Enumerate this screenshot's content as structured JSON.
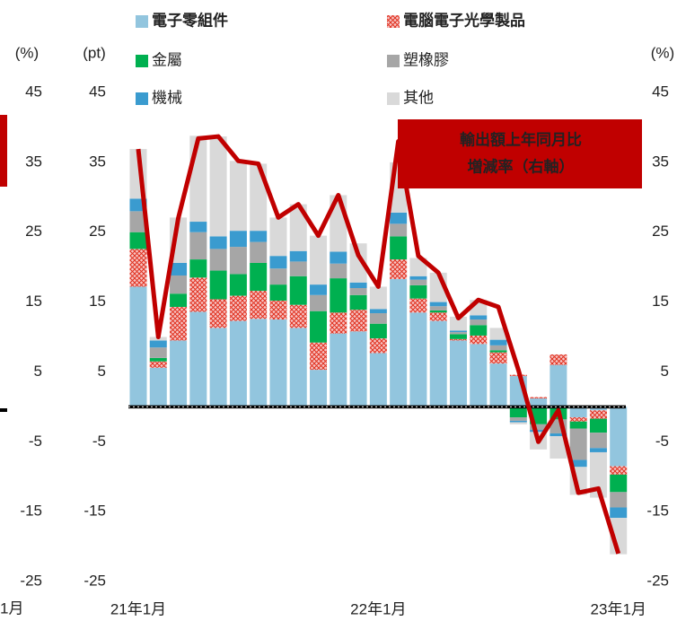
{
  "chart_data": [
    {
      "type": "bar",
      "y_label": "(%)",
      "ylim": [
        -25,
        45
      ],
      "yticks": [
        45,
        35,
        25,
        15,
        5,
        -5,
        -15,
        -25
      ],
      "negative_tick_color": "#e00000",
      "categories": [
        "1月"
      ]
    },
    {
      "type": "bar",
      "stacked": true,
      "y_label": "(pt)",
      "y2_label": "(%)",
      "ylim": [
        -25,
        45
      ],
      "yticks": [
        45,
        35,
        25,
        15,
        5,
        -5,
        -15,
        -25
      ],
      "y2lim": [
        -25,
        45
      ],
      "y2ticks": [
        45,
        35,
        25,
        15,
        5,
        -5,
        -15,
        -25
      ],
      "negative_tick_color": "#e00000",
      "annotation": [
        "輸出額上年同月比",
        "増減率（右軸）"
      ],
      "categories": [
        "21年1月",
        null,
        null,
        null,
        null,
        null,
        null,
        null,
        null,
        null,
        null,
        null,
        "22年1月",
        null,
        null,
        null,
        null,
        null,
        null,
        null,
        null,
        null,
        null,
        null,
        "23年1月"
      ],
      "series": [
        {
          "name": "電子零組件",
          "color": "#92c5de",
          "values": [
            17.2,
            5.6,
            9.5,
            13.6,
            11.3,
            12.3,
            12.6,
            12.5,
            11.3,
            5.3,
            10.5,
            10.8,
            7.7,
            18.3,
            13.5,
            12.3,
            9.5,
            9.0,
            6.2,
            4.4,
            1.2,
            6.0,
            -1.5,
            -0.5,
            -8.5
          ]
        },
        {
          "name": "電腦電子光學製品",
          "color": "#e0301e",
          "hatch": true,
          "values": [
            5.4,
            0.9,
            4.8,
            4.9,
            4.1,
            3.6,
            4.0,
            2.7,
            3.3,
            3.9,
            3.0,
            3.1,
            2.1,
            2.8,
            2.0,
            1.2,
            0.2,
            1.2,
            1.6,
            0.2,
            0.2,
            1.5,
            -0.6,
            -1.2,
            -1.2
          ]
        },
        {
          "name": "金屬",
          "color": "#00b050",
          "values": [
            2.4,
            0.5,
            1.9,
            2.6,
            4.1,
            3.1,
            4.0,
            2.3,
            4.1,
            4.5,
            4.9,
            2.1,
            2.1,
            3.3,
            1.9,
            0.3,
            0.7,
            1.5,
            0.3,
            -1.5,
            -2.5,
            -1.8,
            -1.0,
            -2.0,
            -2.5
          ]
        },
        {
          "name": "塑橡膠",
          "color": "#a6a6a6",
          "values": [
            3.0,
            1.5,
            2.6,
            3.9,
            3.1,
            3.9,
            3.0,
            2.3,
            2.1,
            2.3,
            2.1,
            1.0,
            1.5,
            1.8,
            0.8,
            0.6,
            0.3,
            0.8,
            0.7,
            -0.5,
            -0.8,
            -2.0,
            -4.5,
            -2.2,
            -2.2
          ]
        },
        {
          "name": "機械",
          "color": "#3a9bcf",
          "values": [
            1.8,
            1.0,
            1.8,
            1.5,
            1.8,
            2.3,
            1.6,
            1.8,
            1.5,
            1.5,
            1.7,
            0.8,
            0.6,
            1.6,
            0.5,
            0.6,
            0.2,
            0.6,
            0.8,
            -0.2,
            -0.3,
            -0.4,
            -1.0,
            -0.6,
            -1.5
          ]
        },
        {
          "name": "其他",
          "color": "#d9d9d9",
          "values": [
            7.1,
            0.5,
            6.5,
            12.3,
            14.3,
            10.0,
            9.6,
            5.5,
            6.7,
            7.0,
            8.1,
            5.6,
            3.2,
            7.2,
            2.6,
            4.2,
            2.0,
            2.2,
            1.7,
            -0.3,
            -2.5,
            -3.2,
            -4.0,
            -6.5,
            -5.2
          ]
        },
        {
          "type": "line",
          "axis": "y2",
          "color": "#c00000",
          "values": [
            36.9,
            10.0,
            27.0,
            38.4,
            38.7,
            35.2,
            34.8,
            27.1,
            29.0,
            24.5,
            30.3,
            21.7,
            17.2,
            38.0,
            21.6,
            19.2,
            12.7,
            15.3,
            14.3,
            5.3,
            -5.0,
            -0.5,
            -12.3,
            -11.7,
            -21.0
          ]
        }
      ]
    }
  ]
}
